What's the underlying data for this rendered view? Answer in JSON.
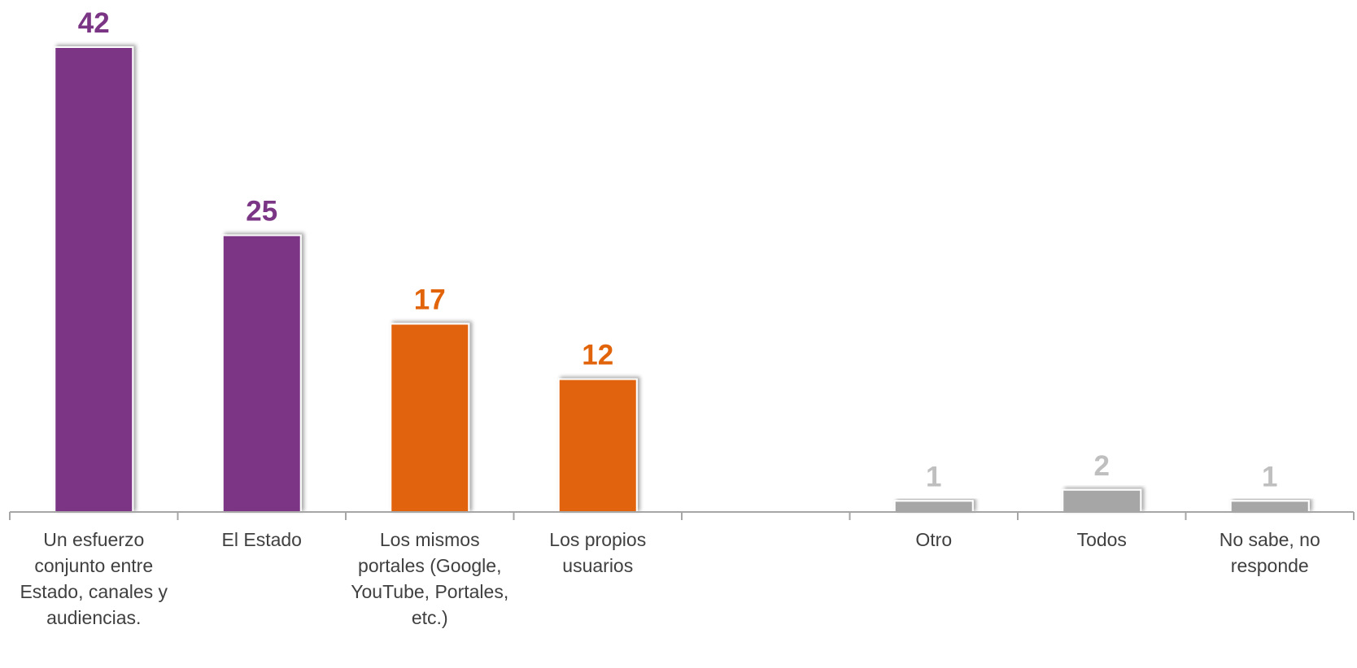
{
  "chart_data": {
    "type": "bar",
    "title": "",
    "xlabel": "",
    "ylabel": "",
    "ylim": [
      0,
      45
    ],
    "grid": false,
    "legend": "none",
    "categories": [
      "Un esfuerzo conjunto entre Estado, canales y audiencias.",
      "El Estado",
      "Los mismos portales (Google, YouTube, Portales, etc.)",
      "Los propios usuarios",
      "",
      "Otro",
      "Todos",
      "No sabe, no responde"
    ],
    "values": [
      42,
      25,
      17,
      12,
      null,
      1,
      2,
      1
    ],
    "data_labels": [
      "42",
      "25",
      "17",
      "12",
      "",
      "1",
      "2",
      "1"
    ],
    "bar_colors": [
      "#7B3585",
      "#7B3585",
      "#E2640A",
      "#E2640A",
      null,
      "#A6A6A6",
      "#A6A6A6",
      "#A6A6A6"
    ],
    "label_colors": [
      "#7B3585",
      "#7B3585",
      "#E2640A",
      "#E2640A",
      null,
      "#BFBFBF",
      "#BFBFBF",
      "#BFBFBF"
    ],
    "axis_color": "#A6A6A6",
    "category_label_color": "#404040"
  }
}
